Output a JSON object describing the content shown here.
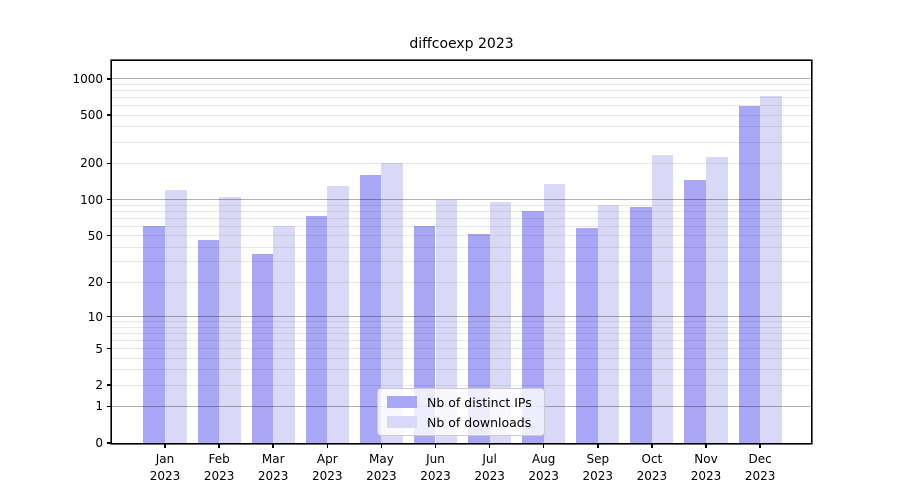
{
  "chart_data": {
    "type": "bar",
    "title": "diffcoexp 2023",
    "categories": [
      "Jan 2023",
      "Feb 2023",
      "Mar 2023",
      "Apr 2023",
      "May 2023",
      "Jun 2023",
      "Jul 2023",
      "Aug 2023",
      "Sep 2023",
      "Oct 2023",
      "Nov 2023",
      "Dec 2023"
    ],
    "series": [
      {
        "name": "Nb of distinct IPs",
        "color": "#a7a7f5",
        "values": [
          60,
          46,
          35,
          73,
          160,
          60,
          52,
          80,
          58,
          87,
          145,
          600
        ]
      },
      {
        "name": "Nb of downloads",
        "color": "#d9d9f7",
        "values": [
          121,
          106,
          60,
          131,
          201,
          100,
          96,
          135,
          90,
          235,
          225,
          720
        ]
      }
    ],
    "xlabel": "",
    "ylabel": "",
    "y_ticks": [
      0,
      1,
      2,
      5,
      10,
      20,
      50,
      100,
      200,
      500,
      1000
    ],
    "ylim": [
      0,
      1400
    ],
    "yscale": "log10(value+1)",
    "grid": "on",
    "legend_position": "bottom-center",
    "colors": {
      "axis": "#000000",
      "grid_major": "#b0b0b0",
      "grid_minor": "#e6e6e6",
      "background": "#ffffff",
      "legend_border": "#cbcbcb"
    }
  }
}
